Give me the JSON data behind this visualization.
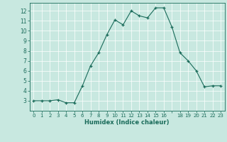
{
  "x": [
    0,
    1,
    2,
    3,
    4,
    5,
    6,
    7,
    8,
    9,
    10,
    11,
    12,
    13,
    14,
    15,
    16,
    17,
    18,
    19,
    20,
    21,
    22,
    23
  ],
  "y": [
    3,
    3,
    3,
    3.1,
    2.8,
    2.8,
    4.5,
    6.5,
    7.8,
    9.6,
    11.1,
    10.6,
    12.0,
    11.5,
    11.3,
    12.3,
    12.3,
    10.4,
    7.8,
    7.0,
    6.0,
    4.4,
    4.5,
    4.5
  ],
  "xlabel": "Humidex (Indice chaleur)",
  "line_color": "#1a6b5a",
  "marker_color": "#1a6b5a",
  "bg_color": "#c8e8e0",
  "grid_color": "#ffffff",
  "text_color": "#1a6b5a",
  "xlim": [
    -0.5,
    23.5
  ],
  "ylim": [
    2.0,
    12.8
  ],
  "yticks": [
    3,
    4,
    5,
    6,
    7,
    8,
    9,
    10,
    11,
    12
  ],
  "xtick_labels": [
    "0",
    "1",
    "2",
    "3",
    "4",
    "5",
    "6",
    "7",
    "8",
    "9",
    "10",
    "11",
    "12",
    "13",
    "14",
    "15",
    "16",
    "",
    "18",
    "19",
    "20",
    "21",
    "22",
    "23"
  ]
}
